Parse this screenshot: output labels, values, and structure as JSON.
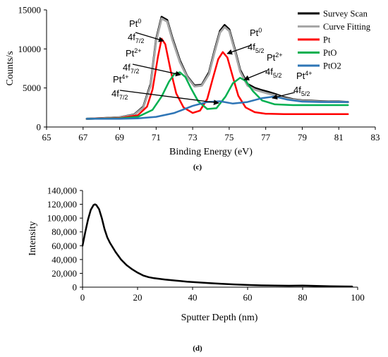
{
  "chart_data": [
    {
      "panel_label": "(c)",
      "type": "line",
      "xlabel": "Binding Energy (eV)",
      "ylabel": "Counts/s",
      "xlim": [
        65,
        83
      ],
      "ylim": [
        0,
        15000
      ],
      "x_ticks": [
        "65",
        "67",
        "69",
        "71",
        "73",
        "75",
        "77",
        "79",
        "81",
        "83"
      ],
      "y_ticks": [
        "0",
        "5000",
        "10000",
        "15000"
      ],
      "grid": false,
      "legend_position": "top-right",
      "series": [
        {
          "name": "Survey Scan",
          "color": "#000000",
          "x": [
            67.2,
            68,
            69,
            69.8,
            70.3,
            70.7,
            71.0,
            71.3,
            71.6,
            71.9,
            72.3,
            72.7,
            73.1,
            73.5,
            73.9,
            74.2,
            74.5,
            74.75,
            75.0,
            75.3,
            75.6,
            76.0,
            76.4,
            76.8,
            77.2,
            77.6,
            78.0,
            78.5,
            79,
            79.5,
            80,
            80.5,
            81,
            81.5
          ],
          "y": [
            1050,
            1120,
            1250,
            1600,
            2600,
            5500,
            11200,
            14100,
            13700,
            11300,
            8500,
            6500,
            5300,
            5400,
            7000,
            9800,
            12300,
            13050,
            12500,
            10000,
            7300,
            5500,
            5000,
            4700,
            4450,
            4150,
            3800,
            3550,
            3400,
            3350,
            3300,
            3250,
            3250,
            3200
          ]
        },
        {
          "name": "Curve Fitting",
          "color": "#a6a6a6",
          "x": [
            67.2,
            68,
            69,
            69.8,
            70.3,
            70.7,
            71.0,
            71.3,
            71.6,
            71.9,
            72.3,
            72.7,
            73.1,
            73.5,
            73.9,
            74.2,
            74.5,
            74.75,
            75.0,
            75.3,
            75.6,
            76.0,
            76.4,
            76.8,
            77.2,
            77.6,
            78.0,
            78.5,
            79,
            79.5,
            80,
            80.5,
            81,
            81.5
          ],
          "y": [
            1050,
            1110,
            1230,
            1550,
            2500,
            5300,
            11000,
            13900,
            13500,
            11100,
            8300,
            6400,
            5200,
            5300,
            6800,
            9600,
            12100,
            12800,
            12300,
            9800,
            7100,
            5300,
            4800,
            4500,
            4250,
            4000,
            3700,
            3500,
            3350,
            3300,
            3250,
            3220,
            3210,
            3200
          ]
        },
        {
          "name": "Pt",
          "color": "#ff0000",
          "x": [
            67.2,
            69,
            70,
            70.5,
            70.8,
            71.1,
            71.3,
            71.5,
            71.8,
            72.1,
            72.5,
            73.0,
            73.4,
            73.8,
            74.1,
            74.4,
            74.65,
            74.9,
            75.2,
            75.5,
            75.9,
            76.4,
            77,
            78,
            79,
            80,
            81.5
          ],
          "y": [
            1050,
            1150,
            1500,
            2600,
            4800,
            9000,
            11300,
            10600,
            7200,
            4300,
            2500,
            1800,
            2100,
            3600,
            6200,
            8700,
            9600,
            8900,
            6400,
            4000,
            2500,
            1900,
            1700,
            1650,
            1650,
            1650,
            1650
          ]
        },
        {
          "name": "PtO",
          "color": "#00b050",
          "x": [
            67.2,
            69,
            70,
            70.8,
            71.3,
            71.7,
            72.0,
            72.3,
            72.6,
            72.9,
            73.3,
            73.8,
            74.3,
            74.8,
            75.2,
            75.6,
            75.9,
            76.3,
            76.8,
            77.5,
            78.5,
            80,
            81.5
          ],
          "y": [
            1050,
            1100,
            1300,
            2200,
            3900,
            5800,
            6800,
            7000,
            6400,
            5000,
            3300,
            2300,
            2400,
            3900,
            5600,
            6300,
            5900,
            4600,
            3400,
            2900,
            2800,
            2800,
            2800
          ]
        },
        {
          "name": "PtO2",
          "color": "#2e75b6",
          "x": [
            67.2,
            69,
            70,
            71,
            72,
            73,
            73.8,
            74.5,
            75.2,
            76,
            76.8,
            77.5,
            78.2,
            79,
            80,
            81.5
          ],
          "y": [
            1050,
            1050,
            1100,
            1300,
            1800,
            2700,
            3200,
            3300,
            3000,
            3200,
            3700,
            3900,
            3500,
            3250,
            3200,
            3200
          ]
        }
      ],
      "annotations": [
        {
          "base": "Pt",
          "sup": "0",
          "line2": "4f",
          "sub": "7/2"
        },
        {
          "base": "Pt",
          "sup": "2+",
          "line2": "4f",
          "sub": "7/2"
        },
        {
          "base": "Pt",
          "sup": "4+",
          "line2": "4f",
          "sub": "7/2"
        },
        {
          "base": "Pt",
          "sup": "0",
          "line2": "4f",
          "sub": "5/2"
        },
        {
          "base": "Pt",
          "sup": "2+",
          "line2": "4f",
          "sub": "5/2"
        },
        {
          "base": "Pt",
          "sup": "4+",
          "line2": "4f",
          "sub": "5/2"
        }
      ]
    },
    {
      "panel_label": "(d)",
      "type": "line",
      "xlabel": "Sputter Depth (nm)",
      "ylabel": "Intensity",
      "xlim": [
        0,
        100
      ],
      "ylim": [
        0,
        140000
      ],
      "x_ticks": [
        "0",
        "20",
        "40",
        "60",
        "80",
        "100"
      ],
      "y_ticks": [
        "0",
        "20,000",
        "40,000",
        "60,000",
        "80,000",
        "100,000",
        "120,000",
        "140,000"
      ],
      "grid": false,
      "series": [
        {
          "name": "",
          "color": "#000000",
          "x": [
            0,
            1,
            2,
            3,
            4,
            4.5,
            5,
            6,
            7,
            8,
            9,
            10,
            12,
            14,
            16,
            18,
            20,
            22,
            24,
            26,
            28,
            30,
            34,
            38,
            42,
            46,
            50,
            55,
            60,
            65,
            70,
            75,
            80,
            85,
            90,
            95,
            98
          ],
          "y": [
            60000,
            80000,
            98000,
            112000,
            119000,
            120000,
            119000,
            113000,
            100000,
            84000,
            72000,
            64000,
            51000,
            40000,
            32000,
            26000,
            21000,
            17000,
            14500,
            13000,
            12000,
            11000,
            9500,
            8000,
            6800,
            5800,
            5000,
            4000,
            3200,
            2600,
            2200,
            2000,
            2200,
            1800,
            1300,
            1000,
            900
          ]
        }
      ]
    }
  ]
}
